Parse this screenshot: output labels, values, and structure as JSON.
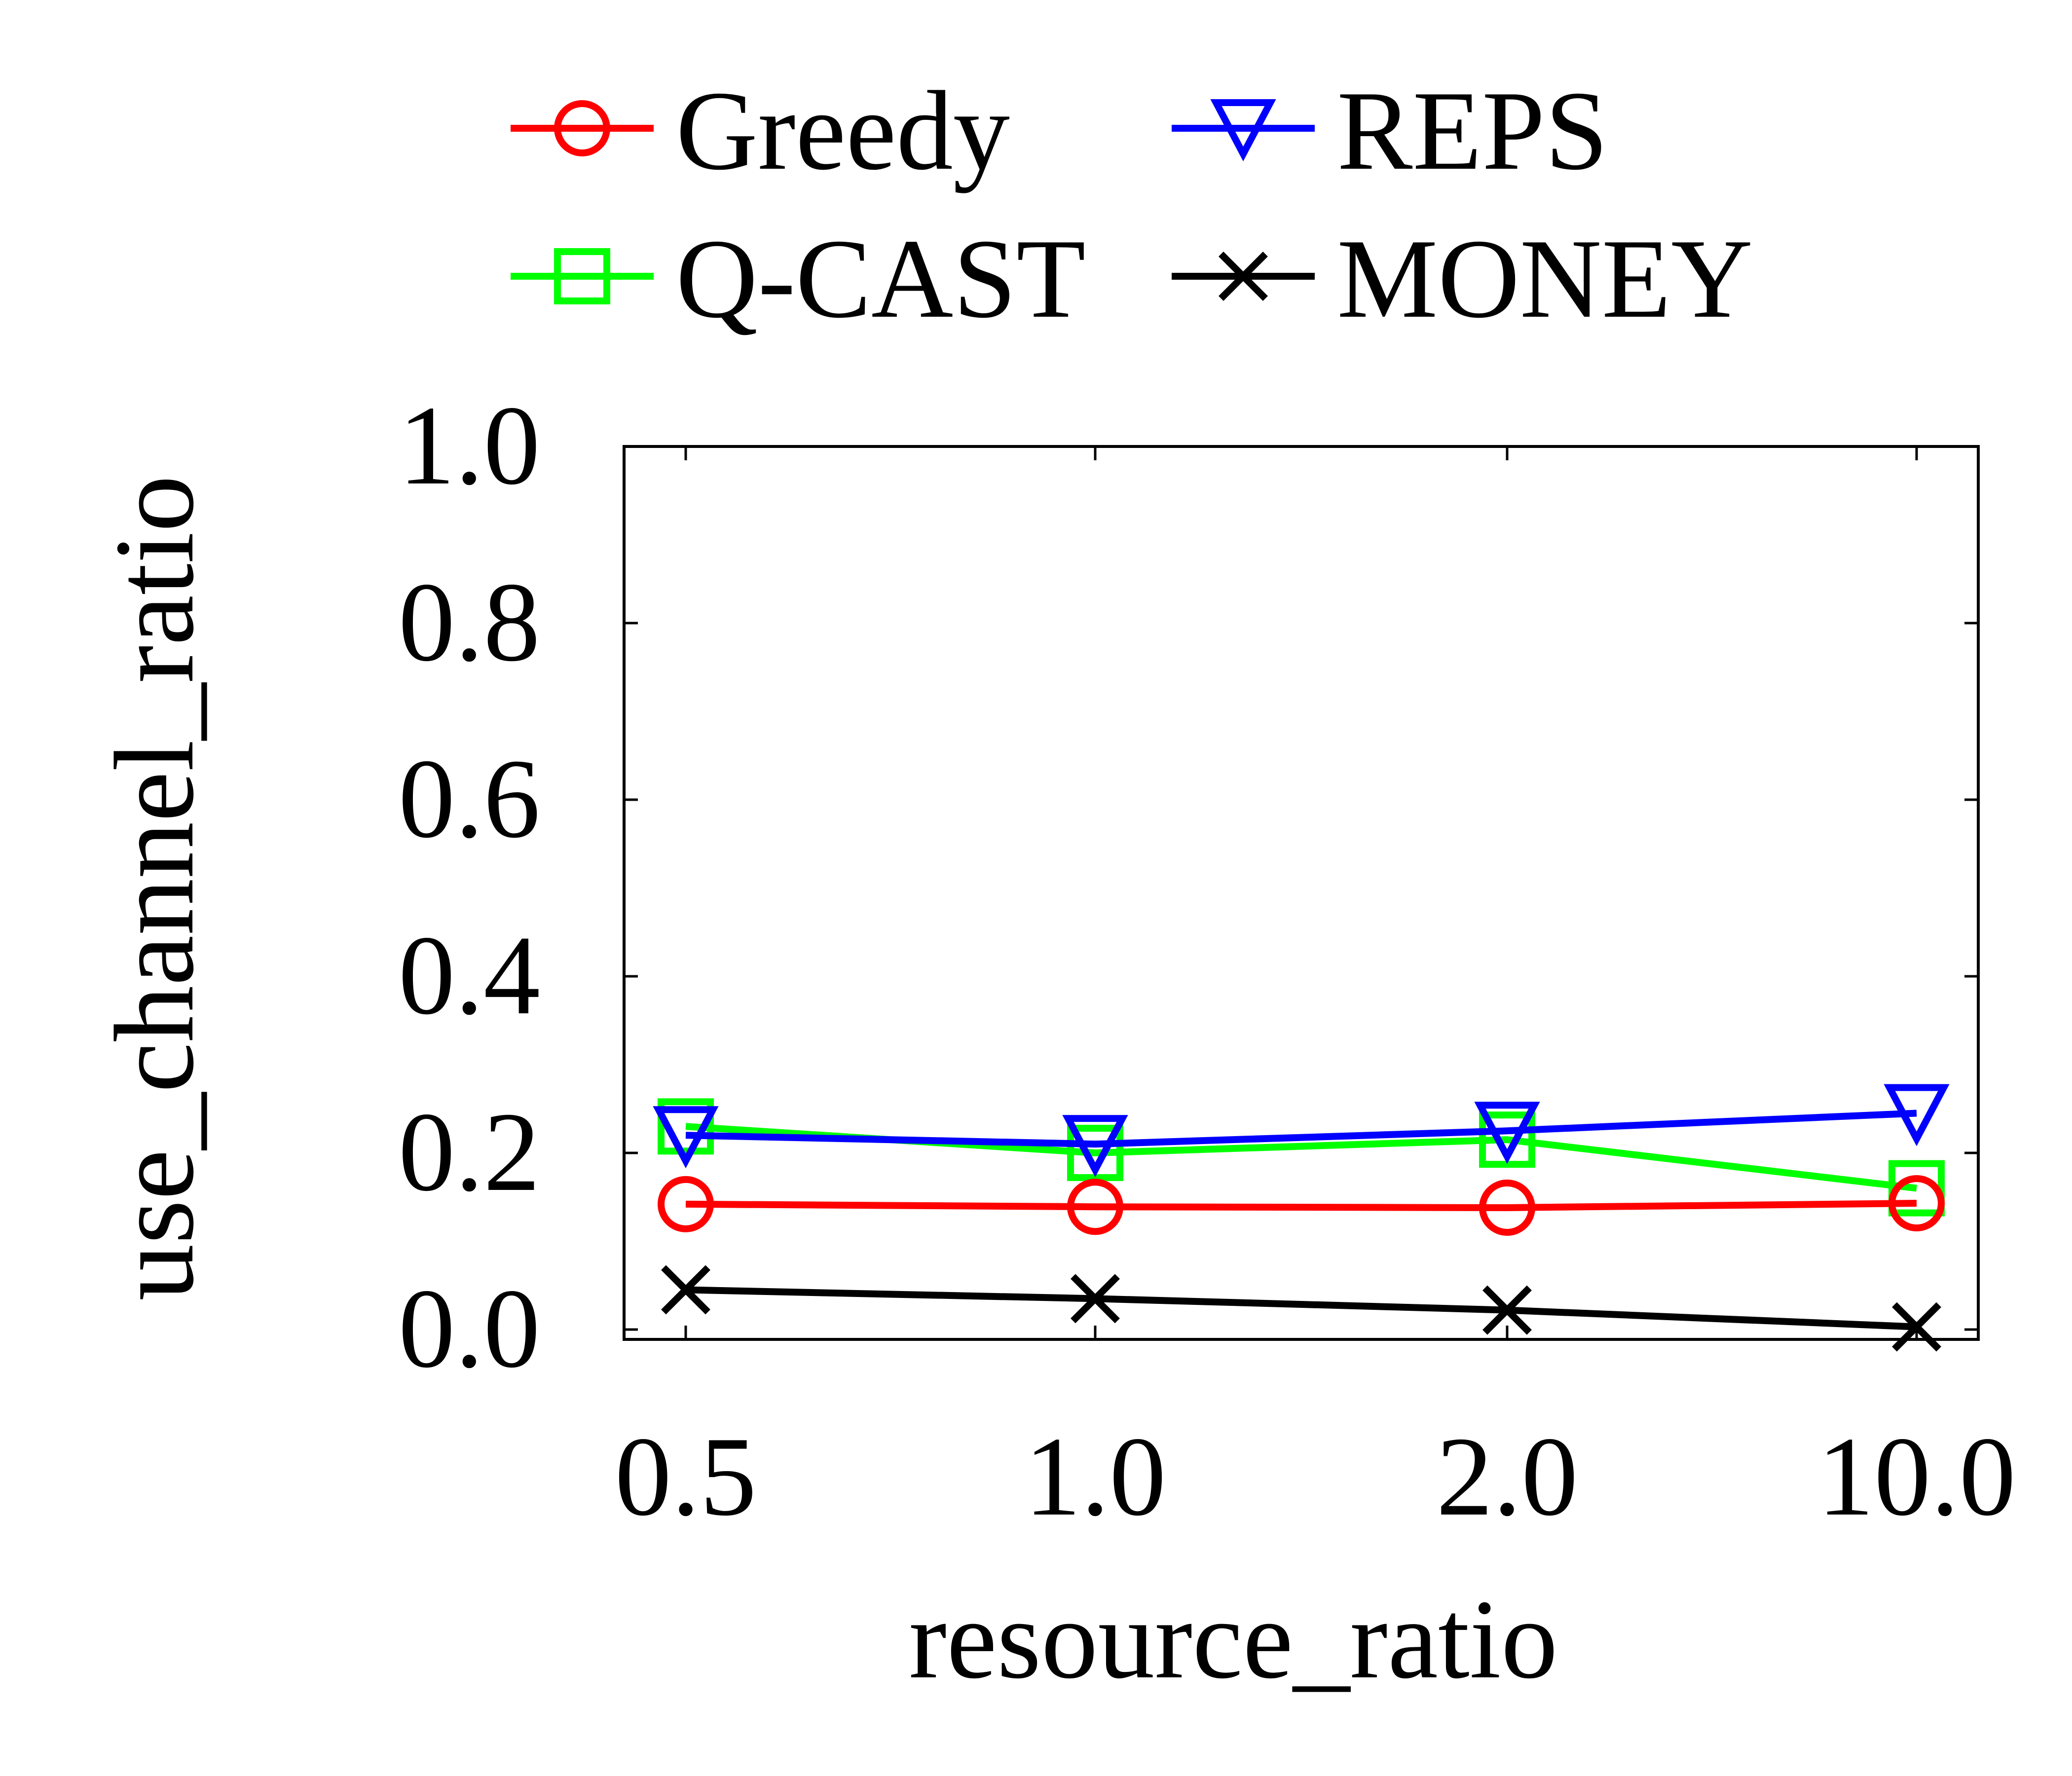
{
  "chart_data": {
    "type": "line",
    "title": "",
    "xlabel": "resource_ratio",
    "ylabel": "use_channel_ratio",
    "categories": [
      "0.5",
      "1.0",
      "2.0",
      "10.0"
    ],
    "ylim": [
      0,
      1.0
    ],
    "yticks": [
      "0.0",
      "0.2",
      "0.4",
      "0.6",
      "0.8",
      "1.0"
    ],
    "grid": false,
    "legend_position": "top",
    "series": [
      {
        "name": "Greedy",
        "color": "#ff0000",
        "marker": "circle",
        "values": [
          0.142,
          0.139,
          0.138,
          0.143
        ]
      },
      {
        "name": "REPS",
        "color": "#0000ff",
        "marker": "triangle-down",
        "values": [
          0.22,
          0.21,
          0.225,
          0.245
        ]
      },
      {
        "name": "Q-CAST",
        "color": "#00ff00",
        "marker": "square",
        "values": [
          0.23,
          0.2,
          0.215,
          0.16
        ]
      },
      {
        "name": "MONEY",
        "color": "#000000",
        "marker": "x",
        "values": [
          0.045,
          0.035,
          0.022,
          0.003
        ]
      }
    ]
  }
}
